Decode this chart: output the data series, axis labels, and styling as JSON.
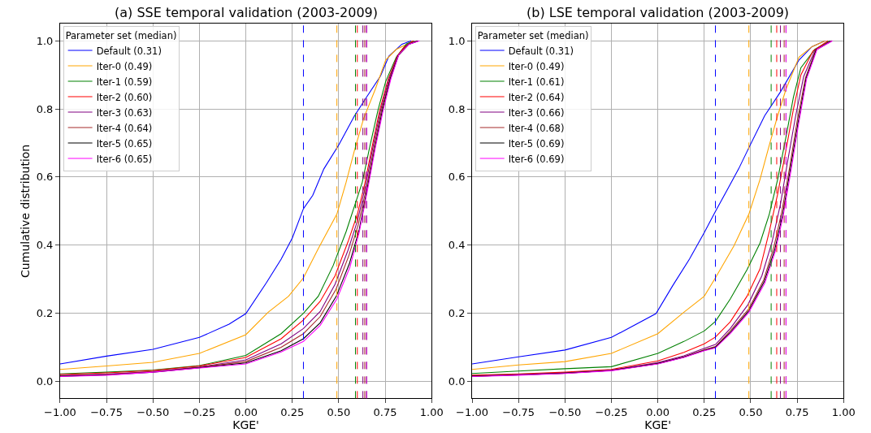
{
  "chart_data": [
    {
      "type": "line",
      "title": "(a) SSE temporal validation (2003-2009)",
      "xlabel": "KGE'",
      "ylabel": "Cumulative distribution",
      "legend_title": "Parameter set (median)",
      "legend": "top left",
      "grid": true,
      "xlim": [
        -1,
        1
      ],
      "xticks": [
        {
          "value": -1,
          "label": "−1.00"
        },
        {
          "value": -0.75,
          "label": "−0.75"
        },
        {
          "value": -0.5,
          "label": "−0.50"
        },
        {
          "value": -0.25,
          "label": "−0.25"
        },
        {
          "value": 0,
          "label": "0.00"
        },
        {
          "value": 0.25,
          "label": "0.25"
        },
        {
          "value": 0.5,
          "label": "0.50"
        },
        {
          "value": 0.75,
          "label": "0.75"
        },
        {
          "value": 1,
          "label": "1.00"
        }
      ],
      "ylim": [
        -0.05,
        1.05
      ],
      "yticks": [
        {
          "value": 0,
          "label": "0.0"
        },
        {
          "value": 0.2,
          "label": "0.2"
        },
        {
          "value": 0.4,
          "label": "0.4"
        },
        {
          "value": 0.6,
          "label": "0.6"
        },
        {
          "value": 0.8,
          "label": "0.8"
        },
        {
          "value": 1,
          "label": "1.0"
        }
      ],
      "series": [
        {
          "name": "Default (0.31)",
          "color": "#0000ff",
          "x": [
            -1,
            -0.75,
            -0.5,
            -0.25,
            -0.09,
            0,
            0.11,
            0.19,
            0.25,
            0.31,
            0.36,
            0.42,
            0.5,
            0.585,
            0.65,
            0.725,
            0.77,
            0.84,
            0.89
          ],
          "values": [
            0.051,
            0.074,
            0.094,
            0.129,
            0.168,
            0.199,
            0.289,
            0.359,
            0.421,
            0.507,
            0.546,
            0.624,
            0.694,
            0.78,
            0.835,
            0.897,
            0.955,
            0.99,
            1.0
          ]
        },
        {
          "name": "Iter-0 (0.49)",
          "color": "#ffa500",
          "x": [
            -1,
            -0.75,
            -0.5,
            -0.25,
            0,
            0.12,
            0.23,
            0.31,
            0.39,
            0.49,
            0.54,
            0.585,
            0.634,
            0.697,
            0.753,
            0.81,
            0.905
          ],
          "values": [
            0.035,
            0.045,
            0.056,
            0.082,
            0.137,
            0.203,
            0.25,
            0.304,
            0.39,
            0.491,
            0.585,
            0.679,
            0.772,
            0.858,
            0.944,
            0.975,
            1.0
          ]
        },
        {
          "name": "Iter-1 (0.59)",
          "color": "#008000",
          "x": [
            -1,
            -0.75,
            -0.5,
            -0.25,
            0,
            0.19,
            0.31,
            0.39,
            0.47,
            0.54,
            0.585,
            0.627,
            0.669,
            0.711,
            0.753,
            0.81,
            0.865,
            0.905
          ],
          "values": [
            0.022,
            0.027,
            0.033,
            0.046,
            0.076,
            0.14,
            0.2,
            0.25,
            0.34,
            0.44,
            0.515,
            0.585,
            0.694,
            0.796,
            0.881,
            0.952,
            0.991,
            1.0
          ]
        },
        {
          "name": "Iter-2 (0.60)",
          "color": "#ff0000",
          "x": [
            -1,
            -0.75,
            -0.5,
            -0.25,
            0,
            0.19,
            0.31,
            0.4,
            0.48,
            0.55,
            0.6,
            0.64,
            0.68,
            0.72,
            0.765,
            0.815,
            0.85,
            0.9
          ],
          "values": [
            0.02,
            0.025,
            0.032,
            0.045,
            0.07,
            0.125,
            0.18,
            0.235,
            0.31,
            0.41,
            0.49,
            0.58,
            0.69,
            0.795,
            0.885,
            0.955,
            0.98,
            1.0
          ]
        },
        {
          "name": "Iter-3 (0.63)",
          "color": "#800080",
          "x": [
            -1,
            -0.75,
            -0.5,
            -0.25,
            0,
            0.19,
            0.31,
            0.4,
            0.48,
            0.55,
            0.6,
            0.645,
            0.685,
            0.725,
            0.77,
            0.817,
            0.873,
            0.92
          ],
          "values": [
            0.017,
            0.021,
            0.029,
            0.042,
            0.063,
            0.11,
            0.155,
            0.205,
            0.285,
            0.385,
            0.47,
            0.575,
            0.69,
            0.795,
            0.887,
            0.956,
            0.99,
            1.0
          ]
        },
        {
          "name": "Iter-4 (0.64)",
          "color": "#a52a2a",
          "x": [
            -1,
            -0.75,
            -0.5,
            -0.25,
            0,
            0.19,
            0.31,
            0.4,
            0.485,
            0.555,
            0.605,
            0.65,
            0.69,
            0.73,
            0.775,
            0.82,
            0.876,
            0.925
          ],
          "values": [
            0.016,
            0.02,
            0.028,
            0.041,
            0.058,
            0.1,
            0.14,
            0.19,
            0.27,
            0.37,
            0.46,
            0.57,
            0.688,
            0.795,
            0.888,
            0.957,
            0.99,
            1.0
          ]
        },
        {
          "name": "Iter-5 (0.65)",
          "color": "#000000",
          "x": [
            -1,
            -0.75,
            -0.5,
            -0.25,
            0,
            0.19,
            0.31,
            0.4,
            0.487,
            0.557,
            0.61,
            0.653,
            0.695,
            0.735,
            0.778,
            0.822,
            0.878,
            0.93
          ],
          "values": [
            0.015,
            0.019,
            0.027,
            0.04,
            0.054,
            0.09,
            0.125,
            0.172,
            0.25,
            0.345,
            0.445,
            0.565,
            0.687,
            0.796,
            0.889,
            0.958,
            0.99,
            1.0
          ]
        },
        {
          "name": "Iter-6 (0.65)",
          "color": "#ff00ff",
          "x": [
            -1,
            -0.75,
            -0.5,
            -0.25,
            0,
            0.19,
            0.31,
            0.4,
            0.49,
            0.56,
            0.61,
            0.655,
            0.697,
            0.739,
            0.781,
            0.823,
            0.879,
            0.935
          ],
          "values": [
            0.014,
            0.018,
            0.027,
            0.039,
            0.051,
            0.086,
            0.117,
            0.164,
            0.242,
            0.335,
            0.437,
            0.562,
            0.686,
            0.796,
            0.889,
            0.959,
            0.99,
            1.0
          ]
        }
      ],
      "ref_lines": [
        {
          "axis": "x",
          "value": 0.31,
          "color": "#0000ff",
          "line_style": "dashed"
        },
        {
          "axis": "x",
          "value": 0.49,
          "color": "#ffa500",
          "line_style": "dashed"
        },
        {
          "axis": "x",
          "value": 0.59,
          "color": "#008000",
          "line_style": "dashed"
        },
        {
          "axis": "x",
          "value": 0.6,
          "color": "#ff0000",
          "line_style": "dashed"
        },
        {
          "axis": "x",
          "value": 0.63,
          "color": "#800080",
          "line_style": "dashed"
        },
        {
          "axis": "x",
          "value": 0.64,
          "color": "#a52a2a",
          "line_style": "dashed"
        },
        {
          "axis": "x",
          "value": 0.65,
          "color": "#000000",
          "line_style": "dashed"
        },
        {
          "axis": "x",
          "value": 0.65,
          "color": "#ff00ff",
          "line_style": "dashed"
        }
      ]
    },
    {
      "type": "line",
      "title": "(b) LSE temporal validation (2003-2009)",
      "xlabel": "KGE'",
      "legend_title": "Parameter set (median)",
      "legend": "top left",
      "grid": true,
      "xlim": [
        -1,
        1
      ],
      "xticks": [
        {
          "value": -1,
          "label": "−1.00"
        },
        {
          "value": -0.75,
          "label": "−0.75"
        },
        {
          "value": -0.5,
          "label": "−0.50"
        },
        {
          "value": -0.25,
          "label": "−0.25"
        },
        {
          "value": 0,
          "label": "0.00"
        },
        {
          "value": 0.25,
          "label": "0.25"
        },
        {
          "value": 0.5,
          "label": "0.50"
        },
        {
          "value": 0.75,
          "label": "0.75"
        },
        {
          "value": 1,
          "label": "1.00"
        }
      ],
      "ylim": [
        -0.05,
        1.05
      ],
      "yticks": [
        {
          "value": 0,
          "label": "0.0"
        },
        {
          "value": 0.2,
          "label": "0.2"
        },
        {
          "value": 0.4,
          "label": "0.4"
        },
        {
          "value": 0.6,
          "label": "0.6"
        },
        {
          "value": 0.8,
          "label": "0.8"
        },
        {
          "value": 1,
          "label": "1.0"
        }
      ],
      "series": [
        {
          "name": "Default (0.31)",
          "color": "#0000ff",
          "x": [
            -1,
            -0.75,
            -0.5,
            -0.25,
            -0.01,
            0.08,
            0.17,
            0.25,
            0.31,
            0.38,
            0.435,
            0.49,
            0.575,
            0.66,
            0.76,
            0.83,
            0.9
          ],
          "values": [
            0.051,
            0.072,
            0.092,
            0.129,
            0.199,
            0.281,
            0.359,
            0.437,
            0.499,
            0.569,
            0.624,
            0.686,
            0.78,
            0.85,
            0.944,
            0.983,
            1.0
          ]
        },
        {
          "name": "Iter-0 (0.49)",
          "color": "#ffa500",
          "x": [
            -1,
            -0.75,
            -0.5,
            -0.25,
            0,
            0.14,
            0.25,
            0.31,
            0.41,
            0.49,
            0.55,
            0.6,
            0.645,
            0.69,
            0.76,
            0.83,
            0.9
          ],
          "values": [
            0.035,
            0.048,
            0.058,
            0.082,
            0.14,
            0.203,
            0.25,
            0.304,
            0.398,
            0.491,
            0.593,
            0.694,
            0.78,
            0.858,
            0.952,
            0.983,
            1.0
          ]
        },
        {
          "name": "Iter-1 (0.61)",
          "color": "#008000",
          "x": [
            -1,
            -0.75,
            -0.5,
            -0.25,
            0,
            0.14,
            0.25,
            0.31,
            0.39,
            0.48,
            0.55,
            0.6,
            0.645,
            0.69,
            0.73,
            0.77,
            0.845,
            0.925
          ],
          "values": [
            0.023,
            0.03,
            0.037,
            0.043,
            0.082,
            0.117,
            0.148,
            0.176,
            0.242,
            0.328,
            0.406,
            0.491,
            0.593,
            0.718,
            0.835,
            0.921,
            0.975,
            1.0
          ]
        },
        {
          "name": "Iter-2 (0.64)",
          "color": "#ff0000",
          "x": [
            -1,
            -0.75,
            -0.5,
            -0.25,
            0,
            0.14,
            0.25,
            0.31,
            0.39,
            0.48,
            0.55,
            0.6,
            0.645,
            0.69,
            0.73,
            0.77,
            0.835,
            0.915
          ],
          "values": [
            0.018,
            0.022,
            0.027,
            0.035,
            0.06,
            0.085,
            0.11,
            0.13,
            0.175,
            0.25,
            0.33,
            0.44,
            0.55,
            0.68,
            0.8,
            0.9,
            0.97,
            1.0
          ]
        },
        {
          "name": "Iter-3 (0.66)",
          "color": "#800080",
          "x": [
            -1,
            -0.75,
            -0.5,
            -0.25,
            0,
            0.14,
            0.25,
            0.31,
            0.39,
            0.485,
            0.56,
            0.615,
            0.66,
            0.7,
            0.742,
            0.785,
            0.845,
            0.93
          ],
          "values": [
            0.016,
            0.02,
            0.025,
            0.033,
            0.055,
            0.075,
            0.097,
            0.108,
            0.155,
            0.225,
            0.31,
            0.41,
            0.52,
            0.65,
            0.78,
            0.895,
            0.972,
            1.0
          ]
        },
        {
          "name": "Iter-4 (0.68)",
          "color": "#a52a2a",
          "x": [
            -1,
            -0.75,
            -0.5,
            -0.25,
            0,
            0.14,
            0.25,
            0.31,
            0.39,
            0.49,
            0.57,
            0.625,
            0.668,
            0.71,
            0.75,
            0.795,
            0.85,
            0.935
          ],
          "values": [
            0.015,
            0.019,
            0.024,
            0.032,
            0.053,
            0.072,
            0.093,
            0.102,
            0.148,
            0.213,
            0.298,
            0.395,
            0.5,
            0.63,
            0.765,
            0.892,
            0.973,
            1.0
          ]
        },
        {
          "name": "Iter-5 (0.69)",
          "color": "#000000",
          "x": [
            -1,
            -0.75,
            -0.5,
            -0.25,
            0,
            0.14,
            0.25,
            0.31,
            0.39,
            0.49,
            0.573,
            0.63,
            0.672,
            0.713,
            0.755,
            0.798,
            0.853,
            0.937
          ],
          "values": [
            0.015,
            0.019,
            0.024,
            0.032,
            0.052,
            0.071,
            0.091,
            0.1,
            0.143,
            0.207,
            0.293,
            0.388,
            0.49,
            0.622,
            0.76,
            0.89,
            0.974,
            1.0
          ]
        },
        {
          "name": "Iter-6 (0.69)",
          "color": "#ff00ff",
          "x": [
            -1,
            -0.75,
            -0.5,
            -0.25,
            0,
            0.14,
            0.25,
            0.31,
            0.39,
            0.49,
            0.576,
            0.632,
            0.674,
            0.716,
            0.758,
            0.801,
            0.857,
            0.94
          ],
          "values": [
            0.014,
            0.018,
            0.023,
            0.031,
            0.051,
            0.07,
            0.09,
            0.098,
            0.14,
            0.203,
            0.289,
            0.382,
            0.484,
            0.616,
            0.757,
            0.889,
            0.975,
            1.0
          ]
        }
      ],
      "ref_lines": [
        {
          "axis": "x",
          "value": 0.31,
          "color": "#0000ff",
          "line_style": "dashed"
        },
        {
          "axis": "x",
          "value": 0.49,
          "color": "#ffa500",
          "line_style": "dashed"
        },
        {
          "axis": "x",
          "value": 0.61,
          "color": "#008000",
          "line_style": "dashed"
        },
        {
          "axis": "x",
          "value": 0.64,
          "color": "#ff0000",
          "line_style": "dashed"
        },
        {
          "axis": "x",
          "value": 0.66,
          "color": "#800080",
          "line_style": "dashed"
        },
        {
          "axis": "x",
          "value": 0.68,
          "color": "#a52a2a",
          "line_style": "dashed"
        },
        {
          "axis": "x",
          "value": 0.69,
          "color": "#000000",
          "line_style": "dashed"
        },
        {
          "axis": "x",
          "value": 0.69,
          "color": "#ff00ff",
          "line_style": "dashed"
        }
      ]
    }
  ]
}
